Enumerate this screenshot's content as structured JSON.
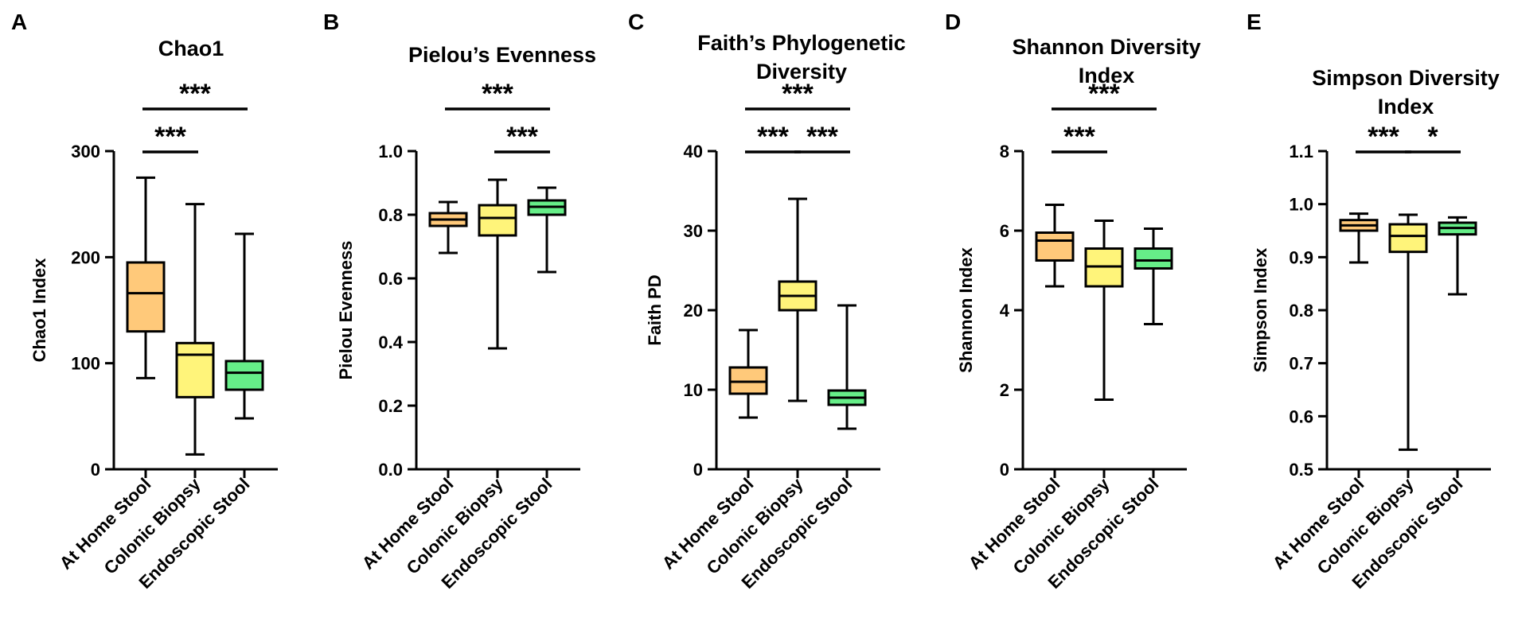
{
  "chart_data": [
    {
      "letter": "A",
      "type": "boxplot",
      "title": [
        "Chao1"
      ],
      "ylabel": "Chao1 Index",
      "ylim": [
        0,
        300
      ],
      "yticks": [
        0,
        100,
        200,
        300
      ],
      "tick_labels": [
        "0",
        "100",
        "200",
        "300"
      ],
      "categories": [
        "At Home Stool",
        "Colonic Biopsy",
        "Endoscopic Stool"
      ],
      "boxes": [
        {
          "min": 86,
          "q1": 130,
          "median": 166,
          "q3": 195,
          "max": 275
        },
        {
          "min": 14,
          "q1": 68,
          "median": 108,
          "q3": 119,
          "max": 250
        },
        {
          "min": 48,
          "q1": 75,
          "median": 91,
          "q3": 102,
          "max": 222
        }
      ],
      "brackets": [
        {
          "from": 0,
          "to": 1,
          "label": "***",
          "level": 0
        },
        {
          "from": 0,
          "to": 2,
          "label": "***",
          "level": 1
        }
      ]
    },
    {
      "letter": "B",
      "type": "boxplot",
      "title": [
        "Pielou’s Evenness"
      ],
      "ylabel": "Pielou Evenness",
      "ylim": [
        0,
        1
      ],
      "yticks": [
        0,
        0.2,
        0.4,
        0.6,
        0.8,
        1.0
      ],
      "tick_labels": [
        "0.0",
        "0.2",
        "0.4",
        "0.6",
        "0.8",
        "1.0"
      ],
      "categories": [
        "At Home Stool",
        "Colonic Biopsy",
        "Endoscopic Stool"
      ],
      "boxes": [
        {
          "min": 0.68,
          "q1": 0.765,
          "median": 0.785,
          "q3": 0.805,
          "max": 0.84
        },
        {
          "min": 0.38,
          "q1": 0.735,
          "median": 0.79,
          "q3": 0.83,
          "max": 0.91
        },
        {
          "min": 0.62,
          "q1": 0.8,
          "median": 0.825,
          "q3": 0.845,
          "max": 0.885
        }
      ],
      "brackets": [
        {
          "from": 1,
          "to": 2,
          "label": "***",
          "level": 0
        },
        {
          "from": 0,
          "to": 2,
          "label": "***",
          "level": 1
        }
      ]
    },
    {
      "letter": "C",
      "type": "boxplot",
      "title": [
        "Faith’s Phylogenetic",
        "Diversity"
      ],
      "ylabel": "Faith PD",
      "ylim": [
        0,
        40
      ],
      "yticks": [
        0,
        10,
        20,
        30,
        40
      ],
      "tick_labels": [
        "0",
        "10",
        "20",
        "30",
        "40"
      ],
      "categories": [
        "At Home Stool",
        "Colonic Biopsy",
        "Endoscopic Stool"
      ],
      "boxes": [
        {
          "min": 6.5,
          "q1": 9.5,
          "median": 11,
          "q3": 12.8,
          "max": 17.5
        },
        {
          "min": 8.6,
          "q1": 20,
          "median": 21.8,
          "q3": 23.6,
          "max": 34
        },
        {
          "min": 5.1,
          "q1": 8.1,
          "median": 9,
          "q3": 9.9,
          "max": 20.6
        }
      ],
      "brackets": [
        {
          "from": 0,
          "to": 1,
          "label": "***",
          "level": 0
        },
        {
          "from": 1,
          "to": 2,
          "label": "***",
          "level": 0
        },
        {
          "from": 0,
          "to": 2,
          "label": "***",
          "level": 1
        }
      ]
    },
    {
      "letter": "D",
      "type": "boxplot",
      "title": [
        "Shannon Diversity",
        "Index"
      ],
      "ylabel": "Shannon Index",
      "ylim": [
        0,
        8
      ],
      "yticks": [
        0,
        2,
        4,
        6,
        8
      ],
      "tick_labels": [
        "0",
        "2",
        "4",
        "6",
        "8"
      ],
      "categories": [
        "At Home Stool",
        "Colonic Biopsy",
        "Endoscopic Stool"
      ],
      "boxes": [
        {
          "min": 4.6,
          "q1": 5.25,
          "median": 5.75,
          "q3": 5.95,
          "max": 6.65
        },
        {
          "min": 1.75,
          "q1": 4.6,
          "median": 5.1,
          "q3": 5.55,
          "max": 6.25
        },
        {
          "min": 3.65,
          "q1": 5.05,
          "median": 5.25,
          "q3": 5.55,
          "max": 6.05
        }
      ],
      "brackets": [
        {
          "from": 0,
          "to": 1,
          "label": "***",
          "level": 0
        },
        {
          "from": 0,
          "to": 2,
          "label": "***",
          "level": 1
        }
      ]
    },
    {
      "letter": "E",
      "type": "boxplot",
      "title": [
        "Simpson Diversity",
        "Index"
      ],
      "ylabel": "Simpson Index",
      "ylim": [
        0.5,
        1.1
      ],
      "yticks": [
        0.5,
        0.6,
        0.7,
        0.8,
        0.9,
        1.0,
        1.1
      ],
      "tick_labels": [
        "0.5",
        "0.6",
        "0.7",
        "0.8",
        "0.9",
        "1.0",
        "1.1"
      ],
      "categories": [
        "At Home Stool",
        "Colonic Biopsy",
        "Endoscopic Stool"
      ],
      "boxes": [
        {
          "min": 0.89,
          "q1": 0.95,
          "median": 0.96,
          "q3": 0.97,
          "max": 0.982
        },
        {
          "min": 0.537,
          "q1": 0.91,
          "median": 0.94,
          "q3": 0.962,
          "max": 0.98
        },
        {
          "min": 0.83,
          "q1": 0.943,
          "median": 0.955,
          "q3": 0.965,
          "max": 0.975
        }
      ],
      "brackets": [
        {
          "from": 0,
          "to": 1,
          "label": "***",
          "level": 0
        },
        {
          "from": 1,
          "to": 2,
          "label": "*",
          "level": 0
        }
      ]
    }
  ],
  "colors": {
    "box_fill": [
      "#FFC97A",
      "#FFF47A",
      "#66EE88"
    ],
    "line": "#000000"
  }
}
